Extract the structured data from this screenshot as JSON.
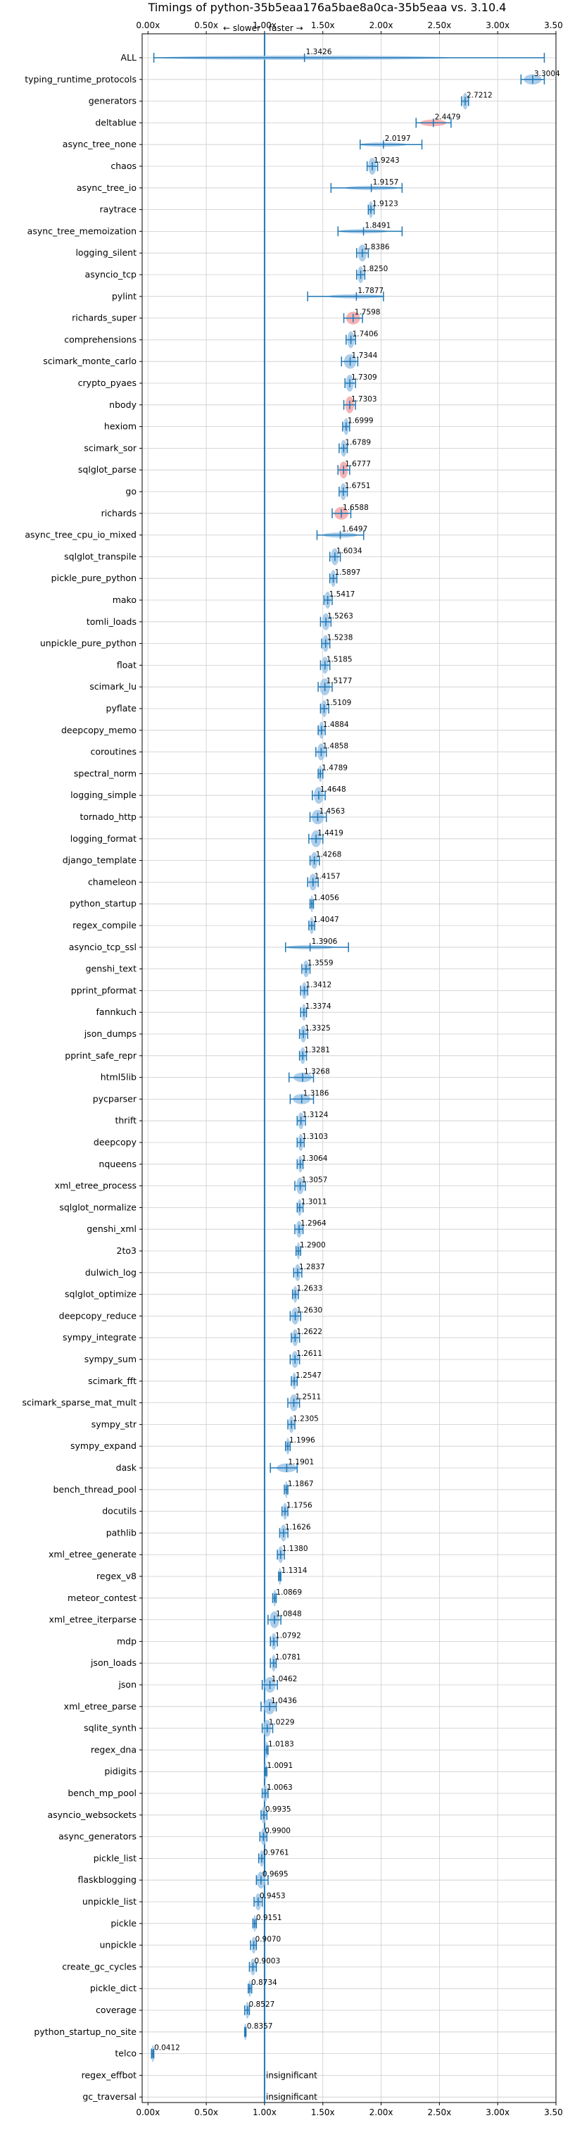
{
  "chart_data": {
    "type": "violin",
    "title": "Timings of python-35b5eaa176a5bae8a0ca-35b5eaa vs. 3.10.4",
    "xlabel": "",
    "ylabel": "",
    "xlim": [
      -0.05,
      3.5
    ],
    "x_ticks": [
      0.0,
      0.5,
      1.0,
      1.5,
      2.0,
      2.5,
      3.0,
      3.5
    ],
    "x_tick_labels": [
      "0.00x",
      "0.50x",
      "1.00x",
      "1.50x",
      "2.00x",
      "2.50x",
      "3.00x",
      "3.50x"
    ],
    "grid": true,
    "reference_line": 1.0,
    "direction_labels": {
      "left": "← slower",
      "right": "faster →"
    },
    "colors": {
      "faster": "#1f77b4",
      "slower": "#d62728",
      "fill_faster": "#9ec5e8",
      "fill_slower": "#f4a6a6",
      "grid": "#cccccc"
    },
    "benchmarks": [
      {
        "name": "ALL",
        "value": 1.3426,
        "label": "1.3426",
        "low": 0.05,
        "high": 3.4,
        "slower": false
      },
      {
        "name": "typing_runtime_protocols",
        "value": 3.3004,
        "label": "3.3004",
        "low": 3.2,
        "high": 3.4,
        "slower": false
      },
      {
        "name": "generators",
        "value": 2.7212,
        "label": "2.7212",
        "low": 2.69,
        "high": 2.75,
        "slower": false
      },
      {
        "name": "deltablue",
        "value": 2.4479,
        "label": "2.4479",
        "low": 2.3,
        "high": 2.6,
        "slower": true
      },
      {
        "name": "async_tree_none",
        "value": 2.0197,
        "label": "2.0197",
        "low": 1.82,
        "high": 2.35,
        "slower": false
      },
      {
        "name": "chaos",
        "value": 1.9243,
        "label": "1.9243",
        "low": 1.88,
        "high": 1.97,
        "slower": false
      },
      {
        "name": "async_tree_io",
        "value": 1.9157,
        "label": "1.9157",
        "low": 1.57,
        "high": 2.18,
        "slower": false
      },
      {
        "name": "raytrace",
        "value": 1.9123,
        "label": "1.9123",
        "low": 1.89,
        "high": 1.94,
        "slower": false
      },
      {
        "name": "async_tree_memoization",
        "value": 1.8491,
        "label": "1.8491",
        "low": 1.63,
        "high": 2.18,
        "slower": false
      },
      {
        "name": "logging_silent",
        "value": 1.8386,
        "label": "1.8386",
        "low": 1.79,
        "high": 1.89,
        "slower": false
      },
      {
        "name": "asyncio_tcp",
        "value": 1.825,
        "label": "1.8250",
        "low": 1.79,
        "high": 1.86,
        "slower": false
      },
      {
        "name": "pylint",
        "value": 1.7877,
        "label": "1.7877",
        "low": 1.37,
        "high": 2.02,
        "slower": false
      },
      {
        "name": "richards_super",
        "value": 1.7598,
        "label": "1.7598",
        "low": 1.68,
        "high": 1.84,
        "slower": true
      },
      {
        "name": "comprehensions",
        "value": 1.7406,
        "label": "1.7406",
        "low": 1.7,
        "high": 1.78,
        "slower": false
      },
      {
        "name": "scimark_monte_carlo",
        "value": 1.7344,
        "label": "1.7344",
        "low": 1.66,
        "high": 1.8,
        "slower": false
      },
      {
        "name": "crypto_pyaes",
        "value": 1.7309,
        "label": "1.7309",
        "low": 1.69,
        "high": 1.78,
        "slower": false
      },
      {
        "name": "nbody",
        "value": 1.7303,
        "label": "1.7303",
        "low": 1.68,
        "high": 1.78,
        "slower": true
      },
      {
        "name": "hexiom",
        "value": 1.6999,
        "label": "1.6999",
        "low": 1.67,
        "high": 1.73,
        "slower": false
      },
      {
        "name": "scimark_sor",
        "value": 1.6789,
        "label": "1.6789",
        "low": 1.64,
        "high": 1.71,
        "slower": false
      },
      {
        "name": "sqlglot_parse",
        "value": 1.6777,
        "label": "1.6777",
        "low": 1.63,
        "high": 1.73,
        "slower": true
      },
      {
        "name": "go",
        "value": 1.6751,
        "label": "1.6751",
        "low": 1.64,
        "high": 1.71,
        "slower": false
      },
      {
        "name": "richards",
        "value": 1.6588,
        "label": "1.6588",
        "low": 1.58,
        "high": 1.74,
        "slower": true
      },
      {
        "name": "async_tree_cpu_io_mixed",
        "value": 1.6497,
        "label": "1.6497",
        "low": 1.45,
        "high": 1.85,
        "slower": false
      },
      {
        "name": "sqlglot_transpile",
        "value": 1.6034,
        "label": "1.6034",
        "low": 1.56,
        "high": 1.65,
        "slower": false
      },
      {
        "name": "pickle_pure_python",
        "value": 1.5897,
        "label": "1.5897",
        "low": 1.56,
        "high": 1.62,
        "slower": false
      },
      {
        "name": "mako",
        "value": 1.5417,
        "label": "1.5417",
        "low": 1.51,
        "high": 1.58,
        "slower": false
      },
      {
        "name": "tomli_loads",
        "value": 1.5263,
        "label": "1.5263",
        "low": 1.48,
        "high": 1.57,
        "slower": false
      },
      {
        "name": "unpickle_pure_python",
        "value": 1.5238,
        "label": "1.5238",
        "low": 1.49,
        "high": 1.56,
        "slower": false
      },
      {
        "name": "float",
        "value": 1.5185,
        "label": "1.5185",
        "low": 1.48,
        "high": 1.56,
        "slower": false
      },
      {
        "name": "scimark_lu",
        "value": 1.5177,
        "label": "1.5177",
        "low": 1.46,
        "high": 1.58,
        "slower": false
      },
      {
        "name": "pyflate",
        "value": 1.5109,
        "label": "1.5109",
        "low": 1.48,
        "high": 1.55,
        "slower": false
      },
      {
        "name": "deepcopy_memo",
        "value": 1.4884,
        "label": "1.4884",
        "low": 1.46,
        "high": 1.52,
        "slower": false
      },
      {
        "name": "coroutines",
        "value": 1.4858,
        "label": "1.4858",
        "low": 1.44,
        "high": 1.53,
        "slower": false
      },
      {
        "name": "spectral_norm",
        "value": 1.4789,
        "label": "1.4789",
        "low": 1.46,
        "high": 1.5,
        "slower": false
      },
      {
        "name": "logging_simple",
        "value": 1.4648,
        "label": "1.4648",
        "low": 1.41,
        "high": 1.52,
        "slower": false
      },
      {
        "name": "tornado_http",
        "value": 1.4563,
        "label": "1.4563",
        "low": 1.39,
        "high": 1.53,
        "slower": false
      },
      {
        "name": "logging_format",
        "value": 1.4419,
        "label": "1.4419",
        "low": 1.38,
        "high": 1.5,
        "slower": false
      },
      {
        "name": "django_template",
        "value": 1.4268,
        "label": "1.4268",
        "low": 1.39,
        "high": 1.47,
        "slower": false
      },
      {
        "name": "chameleon",
        "value": 1.4157,
        "label": "1.4157",
        "low": 1.37,
        "high": 1.46,
        "slower": false
      },
      {
        "name": "python_startup",
        "value": 1.4056,
        "label": "1.4056",
        "low": 1.39,
        "high": 1.42,
        "slower": false
      },
      {
        "name": "regex_compile",
        "value": 1.4047,
        "label": "1.4047",
        "low": 1.38,
        "high": 1.43,
        "slower": false
      },
      {
        "name": "asyncio_tcp_ssl",
        "value": 1.3906,
        "label": "1.3906",
        "low": 1.18,
        "high": 1.72,
        "slower": false
      },
      {
        "name": "genshi_text",
        "value": 1.3559,
        "label": "1.3559",
        "low": 1.32,
        "high": 1.39,
        "slower": false
      },
      {
        "name": "pprint_pformat",
        "value": 1.3412,
        "label": "1.3412",
        "low": 1.31,
        "high": 1.37,
        "slower": false
      },
      {
        "name": "fannkuch",
        "value": 1.3374,
        "label": "1.3374",
        "low": 1.31,
        "high": 1.36,
        "slower": false
      },
      {
        "name": "json_dumps",
        "value": 1.3325,
        "label": "1.3325",
        "low": 1.3,
        "high": 1.37,
        "slower": false
      },
      {
        "name": "pprint_safe_repr",
        "value": 1.3281,
        "label": "1.3281",
        "low": 1.3,
        "high": 1.36,
        "slower": false
      },
      {
        "name": "html5lib",
        "value": 1.3268,
        "label": "1.3268",
        "low": 1.21,
        "high": 1.42,
        "slower": false
      },
      {
        "name": "pycparser",
        "value": 1.3186,
        "label": "1.3186",
        "low": 1.22,
        "high": 1.42,
        "slower": false
      },
      {
        "name": "thrift",
        "value": 1.3124,
        "label": "1.3124",
        "low": 1.28,
        "high": 1.35,
        "slower": false
      },
      {
        "name": "deepcopy",
        "value": 1.3103,
        "label": "1.3103",
        "low": 1.28,
        "high": 1.34,
        "slower": false
      },
      {
        "name": "nqueens",
        "value": 1.3064,
        "label": "1.3064",
        "low": 1.28,
        "high": 1.33,
        "slower": false
      },
      {
        "name": "xml_etree_process",
        "value": 1.3057,
        "label": "1.3057",
        "low": 1.26,
        "high": 1.35,
        "slower": false
      },
      {
        "name": "sqlglot_normalize",
        "value": 1.3011,
        "label": "1.3011",
        "low": 1.28,
        "high": 1.33,
        "slower": false
      },
      {
        "name": "genshi_xml",
        "value": 1.2964,
        "label": "1.2964",
        "low": 1.26,
        "high": 1.33,
        "slower": false
      },
      {
        "name": "2to3",
        "value": 1.29,
        "label": "1.2900",
        "low": 1.27,
        "high": 1.31,
        "slower": false
      },
      {
        "name": "dulwich_log",
        "value": 1.2837,
        "label": "1.2837",
        "low": 1.25,
        "high": 1.32,
        "slower": false
      },
      {
        "name": "sqlglot_optimize",
        "value": 1.2633,
        "label": "1.2633",
        "low": 1.24,
        "high": 1.29,
        "slower": false
      },
      {
        "name": "deepcopy_reduce",
        "value": 1.263,
        "label": "1.2630",
        "low": 1.22,
        "high": 1.31,
        "slower": false
      },
      {
        "name": "sympy_integrate",
        "value": 1.2622,
        "label": "1.2622",
        "low": 1.23,
        "high": 1.3,
        "slower": false
      },
      {
        "name": "sympy_sum",
        "value": 1.2611,
        "label": "1.2611",
        "low": 1.22,
        "high": 1.3,
        "slower": false
      },
      {
        "name": "scimark_fft",
        "value": 1.2547,
        "label": "1.2547",
        "low": 1.23,
        "high": 1.28,
        "slower": false
      },
      {
        "name": "scimark_sparse_mat_mult",
        "value": 1.2511,
        "label": "1.2511",
        "low": 1.2,
        "high": 1.3,
        "slower": false
      },
      {
        "name": "sympy_str",
        "value": 1.2305,
        "label": "1.2305",
        "low": 1.2,
        "high": 1.26,
        "slower": false
      },
      {
        "name": "sympy_expand",
        "value": 1.1996,
        "label": "1.1996",
        "low": 1.18,
        "high": 1.22,
        "slower": false
      },
      {
        "name": "dask",
        "value": 1.1901,
        "label": "1.1901",
        "low": 1.05,
        "high": 1.28,
        "slower": false
      },
      {
        "name": "bench_thread_pool",
        "value": 1.1867,
        "label": "1.1867",
        "low": 1.17,
        "high": 1.2,
        "slower": false
      },
      {
        "name": "docutils",
        "value": 1.1756,
        "label": "1.1756",
        "low": 1.15,
        "high": 1.2,
        "slower": false
      },
      {
        "name": "pathlib",
        "value": 1.1626,
        "label": "1.1626",
        "low": 1.13,
        "high": 1.2,
        "slower": false
      },
      {
        "name": "xml_etree_generate",
        "value": 1.138,
        "label": "1.1380",
        "low": 1.11,
        "high": 1.17,
        "slower": false
      },
      {
        "name": "regex_v8",
        "value": 1.1314,
        "label": "1.1314",
        "low": 1.12,
        "high": 1.14,
        "slower": false
      },
      {
        "name": "meteor_contest",
        "value": 1.0869,
        "label": "1.0869",
        "low": 1.07,
        "high": 1.1,
        "slower": false
      },
      {
        "name": "xml_etree_iterparse",
        "value": 1.0848,
        "label": "1.0848",
        "low": 1.03,
        "high": 1.14,
        "slower": false
      },
      {
        "name": "mdp",
        "value": 1.0792,
        "label": "1.0792",
        "low": 1.05,
        "high": 1.11,
        "slower": false
      },
      {
        "name": "json_loads",
        "value": 1.0781,
        "label": "1.0781",
        "low": 1.05,
        "high": 1.1,
        "slower": false
      },
      {
        "name": "json",
        "value": 1.0462,
        "label": "1.0462",
        "low": 0.98,
        "high": 1.11,
        "slower": false
      },
      {
        "name": "xml_etree_parse",
        "value": 1.0436,
        "label": "1.0436",
        "low": 0.97,
        "high": 1.1,
        "slower": false
      },
      {
        "name": "sqlite_synth",
        "value": 1.0229,
        "label": "1.0229",
        "low": 0.98,
        "high": 1.07,
        "slower": false
      },
      {
        "name": "regex_dna",
        "value": 1.0183,
        "label": "1.0183",
        "low": 1.0,
        "high": 1.03,
        "slower": false
      },
      {
        "name": "pidigits",
        "value": 1.0091,
        "label": "1.0091",
        "low": 1.0,
        "high": 1.02,
        "slower": false
      },
      {
        "name": "bench_mp_pool",
        "value": 1.0063,
        "label": "1.0063",
        "low": 0.98,
        "high": 1.03,
        "slower": false
      },
      {
        "name": "asyncio_websockets",
        "value": 0.9935,
        "label": "0.9935",
        "low": 0.97,
        "high": 1.02,
        "slower": false
      },
      {
        "name": "async_generators",
        "value": 0.99,
        "label": "0.9900",
        "low": 0.96,
        "high": 1.02,
        "slower": false
      },
      {
        "name": "pickle_list",
        "value": 0.9761,
        "label": "0.9761",
        "low": 0.95,
        "high": 1.0,
        "slower": false
      },
      {
        "name": "flaskblogging",
        "value": 0.9695,
        "label": "0.9695",
        "low": 0.93,
        "high": 1.03,
        "slower": false
      },
      {
        "name": "unpickle_list",
        "value": 0.9453,
        "label": "0.9453",
        "low": 0.91,
        "high": 0.98,
        "slower": false
      },
      {
        "name": "pickle",
        "value": 0.9151,
        "label": "0.9151",
        "low": 0.9,
        "high": 0.93,
        "slower": false
      },
      {
        "name": "unpickle",
        "value": 0.907,
        "label": "0.9070",
        "low": 0.88,
        "high": 0.93,
        "slower": false
      },
      {
        "name": "create_gc_cycles",
        "value": 0.9003,
        "label": "0.9003",
        "low": 0.87,
        "high": 0.93,
        "slower": false
      },
      {
        "name": "pickle_dict",
        "value": 0.8734,
        "label": "0.8734",
        "low": 0.86,
        "high": 0.89,
        "slower": false
      },
      {
        "name": "coverage",
        "value": 0.8527,
        "label": "0.8527",
        "low": 0.83,
        "high": 0.87,
        "slower": false
      },
      {
        "name": "python_startup_no_site",
        "value": 0.8357,
        "label": "0.8357",
        "low": 0.83,
        "high": 0.84,
        "slower": false
      },
      {
        "name": "telco",
        "value": 0.0412,
        "label": "0.0412",
        "low": 0.03,
        "high": 0.05,
        "slower": false
      },
      {
        "name": "regex_effbot",
        "value": null,
        "label": "insignificant",
        "low": null,
        "high": null,
        "slower": false
      },
      {
        "name": "gc_traversal",
        "value": null,
        "label": "insignificant",
        "low": null,
        "high": null,
        "slower": false
      }
    ]
  }
}
